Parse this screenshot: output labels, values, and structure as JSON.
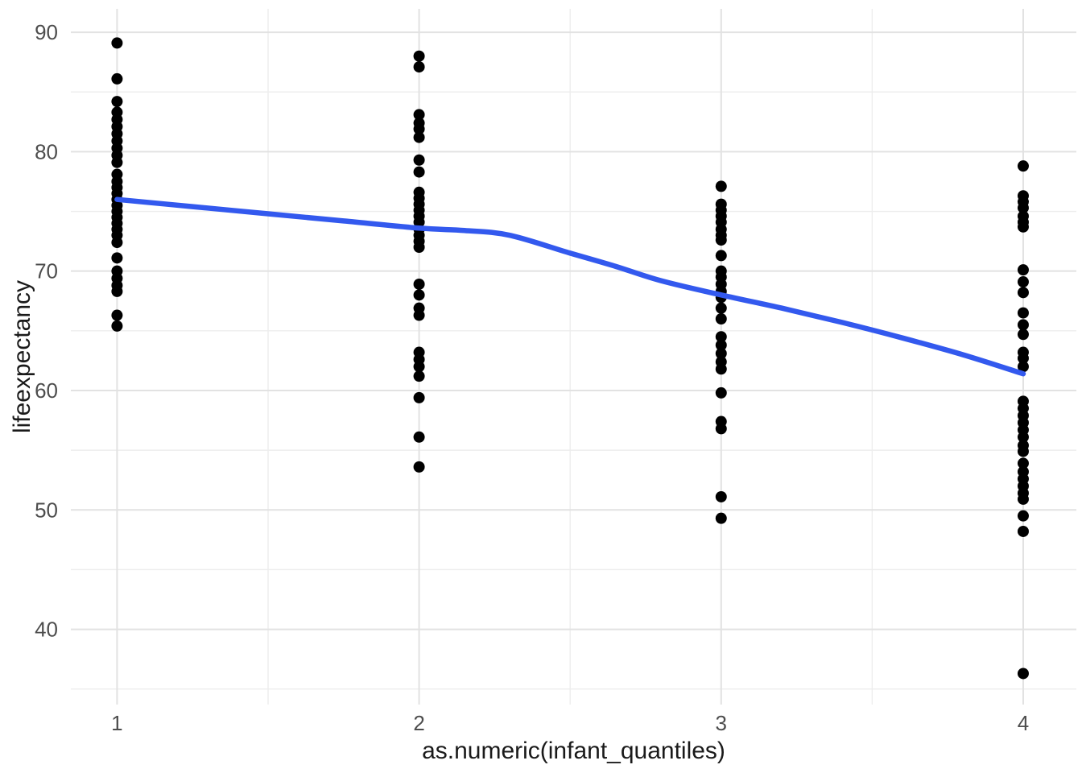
{
  "chart_data": {
    "type": "scatter",
    "title": "",
    "xlabel": "as.numeric(infant_quantiles)",
    "ylabel": "lifeexpectancy",
    "x_ticks": [
      1,
      2,
      3,
      4
    ],
    "y_ticks": [
      40,
      50,
      60,
      70,
      80,
      90
    ],
    "x_minor_gridlines": [
      1.5,
      2.5,
      3.5
    ],
    "y_minor_gridlines": [
      35,
      45,
      55,
      65,
      75,
      85
    ],
    "xlim": [
      0.847,
      4.176
    ],
    "ylim": [
      33.7,
      91.96
    ],
    "grid": "major and minor, light gray, no axis lines or tick marks (ggplot theme_minimal)",
    "legend": "none",
    "colors": {
      "point": "#000000",
      "smooth_line": "#3359EE",
      "grid_major": "#e2e2e2",
      "grid_minor": "#ededed",
      "tick_text": "#4d4d4d",
      "title_text": "#1a1a1a",
      "background": "#ffffff"
    },
    "points": {
      "1": [
        89.1,
        86.1,
        84.2,
        83.3,
        82.7,
        82.1,
        81.5,
        80.9,
        80.3,
        79.7,
        79.1,
        78.1,
        77.5,
        77.0,
        76.5,
        76.0,
        75.5,
        75.0,
        74.5,
        74.0,
        73.5,
        73.0,
        72.4,
        71.1,
        70.0,
        69.4,
        68.8,
        68.3,
        66.3,
        65.4
      ],
      "2": [
        88.0,
        87.1,
        83.1,
        82.4,
        81.9,
        81.2,
        79.3,
        78.3,
        76.6,
        76.1,
        75.6,
        75.1,
        74.6,
        74.1,
        73.5,
        73.0,
        72.5,
        72.0,
        68.9,
        68.0,
        66.9,
        66.3,
        63.2,
        62.6,
        62.0,
        61.2,
        59.4,
        56.1,
        53.6
      ],
      "3": [
        77.1,
        75.6,
        75.1,
        74.6,
        74.1,
        73.5,
        73.0,
        72.6,
        71.3,
        70.0,
        69.5,
        68.9,
        68.3,
        67.8,
        66.9,
        66.0,
        64.5,
        63.8,
        63.1,
        62.4,
        61.8,
        59.8,
        57.4,
        56.8,
        51.1,
        49.3
      ],
      "4": [
        78.8,
        76.3,
        75.8,
        75.3,
        74.6,
        74.1,
        73.7,
        70.1,
        69.1,
        68.2,
        66.5,
        65.5,
        64.7,
        63.2,
        62.7,
        62.0,
        59.1,
        58.5,
        57.9,
        57.3,
        56.7,
        56.1,
        55.4,
        54.9,
        53.9,
        53.2,
        52.6,
        52.0,
        51.4,
        50.9,
        49.5,
        48.2,
        36.3
      ]
    },
    "smooth_line": {
      "x": [
        1.0,
        1.25,
        1.5,
        1.75,
        2.0,
        2.15,
        2.3,
        2.5,
        2.65,
        2.8,
        3.0,
        3.2,
        3.4,
        3.6,
        3.8,
        4.0
      ],
      "y": [
        76.0,
        75.4,
        74.8,
        74.2,
        73.6,
        73.4,
        73.0,
        71.5,
        70.4,
        69.2,
        68.0,
        66.9,
        65.7,
        64.4,
        63.0,
        61.4
      ]
    }
  }
}
